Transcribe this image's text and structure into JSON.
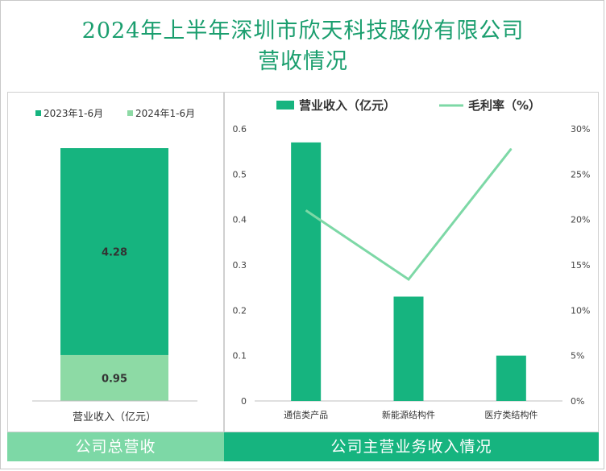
{
  "page_title": "2024年上半年深圳市欣天科技股份有限公司营收情况",
  "title_lines": [
    "2024年上半年深圳市欣天科技股份有限公司",
    "营收情况"
  ],
  "colors": {
    "primary": "#16b47f",
    "light": "#8ddaa5",
    "line": "#7dd8a6",
    "title": "#1a9e6e"
  },
  "footer": {
    "left_label": "公司总营收",
    "right_label": "公司主营业务收入情况"
  },
  "chart_data": [
    {
      "type": "bar",
      "stacked": true,
      "categories": [
        "营业收入（亿元）"
      ],
      "series": [
        {
          "name": "2023年1-6月",
          "values": [
            4.28
          ],
          "label": "4.28",
          "color": "#16b47f"
        },
        {
          "name": "2024年1-6月",
          "values": [
            0.95
          ],
          "label": "0.95",
          "color": "#8ddaa5"
        }
      ],
      "legend_position": "top-left"
    },
    {
      "type": "bar",
      "categories": [
        "通信类产品",
        "新能源结构件",
        "医疗类结构件"
      ],
      "series": [
        {
          "name": "营业收入（亿元）",
          "type": "bar",
          "axis": "left",
          "values": [
            0.57,
            0.23,
            0.1
          ],
          "color": "#16b47f"
        },
        {
          "name": "毛利率（%）",
          "type": "line",
          "axis": "right",
          "values": [
            21,
            13.4,
            27.8
          ],
          "color": "#7dd8a6"
        }
      ],
      "ylim": [
        0,
        0.6
      ],
      "yticks": [
        "0",
        "0.1",
        "0.2",
        "0.3",
        "0.4",
        "0.5",
        "0.6"
      ],
      "y2lim": [
        0,
        30
      ],
      "y2ticks": [
        "0%",
        "5%",
        "10%",
        "15%",
        "20%",
        "25%",
        "30%"
      ],
      "legend_position": "top-center"
    }
  ]
}
